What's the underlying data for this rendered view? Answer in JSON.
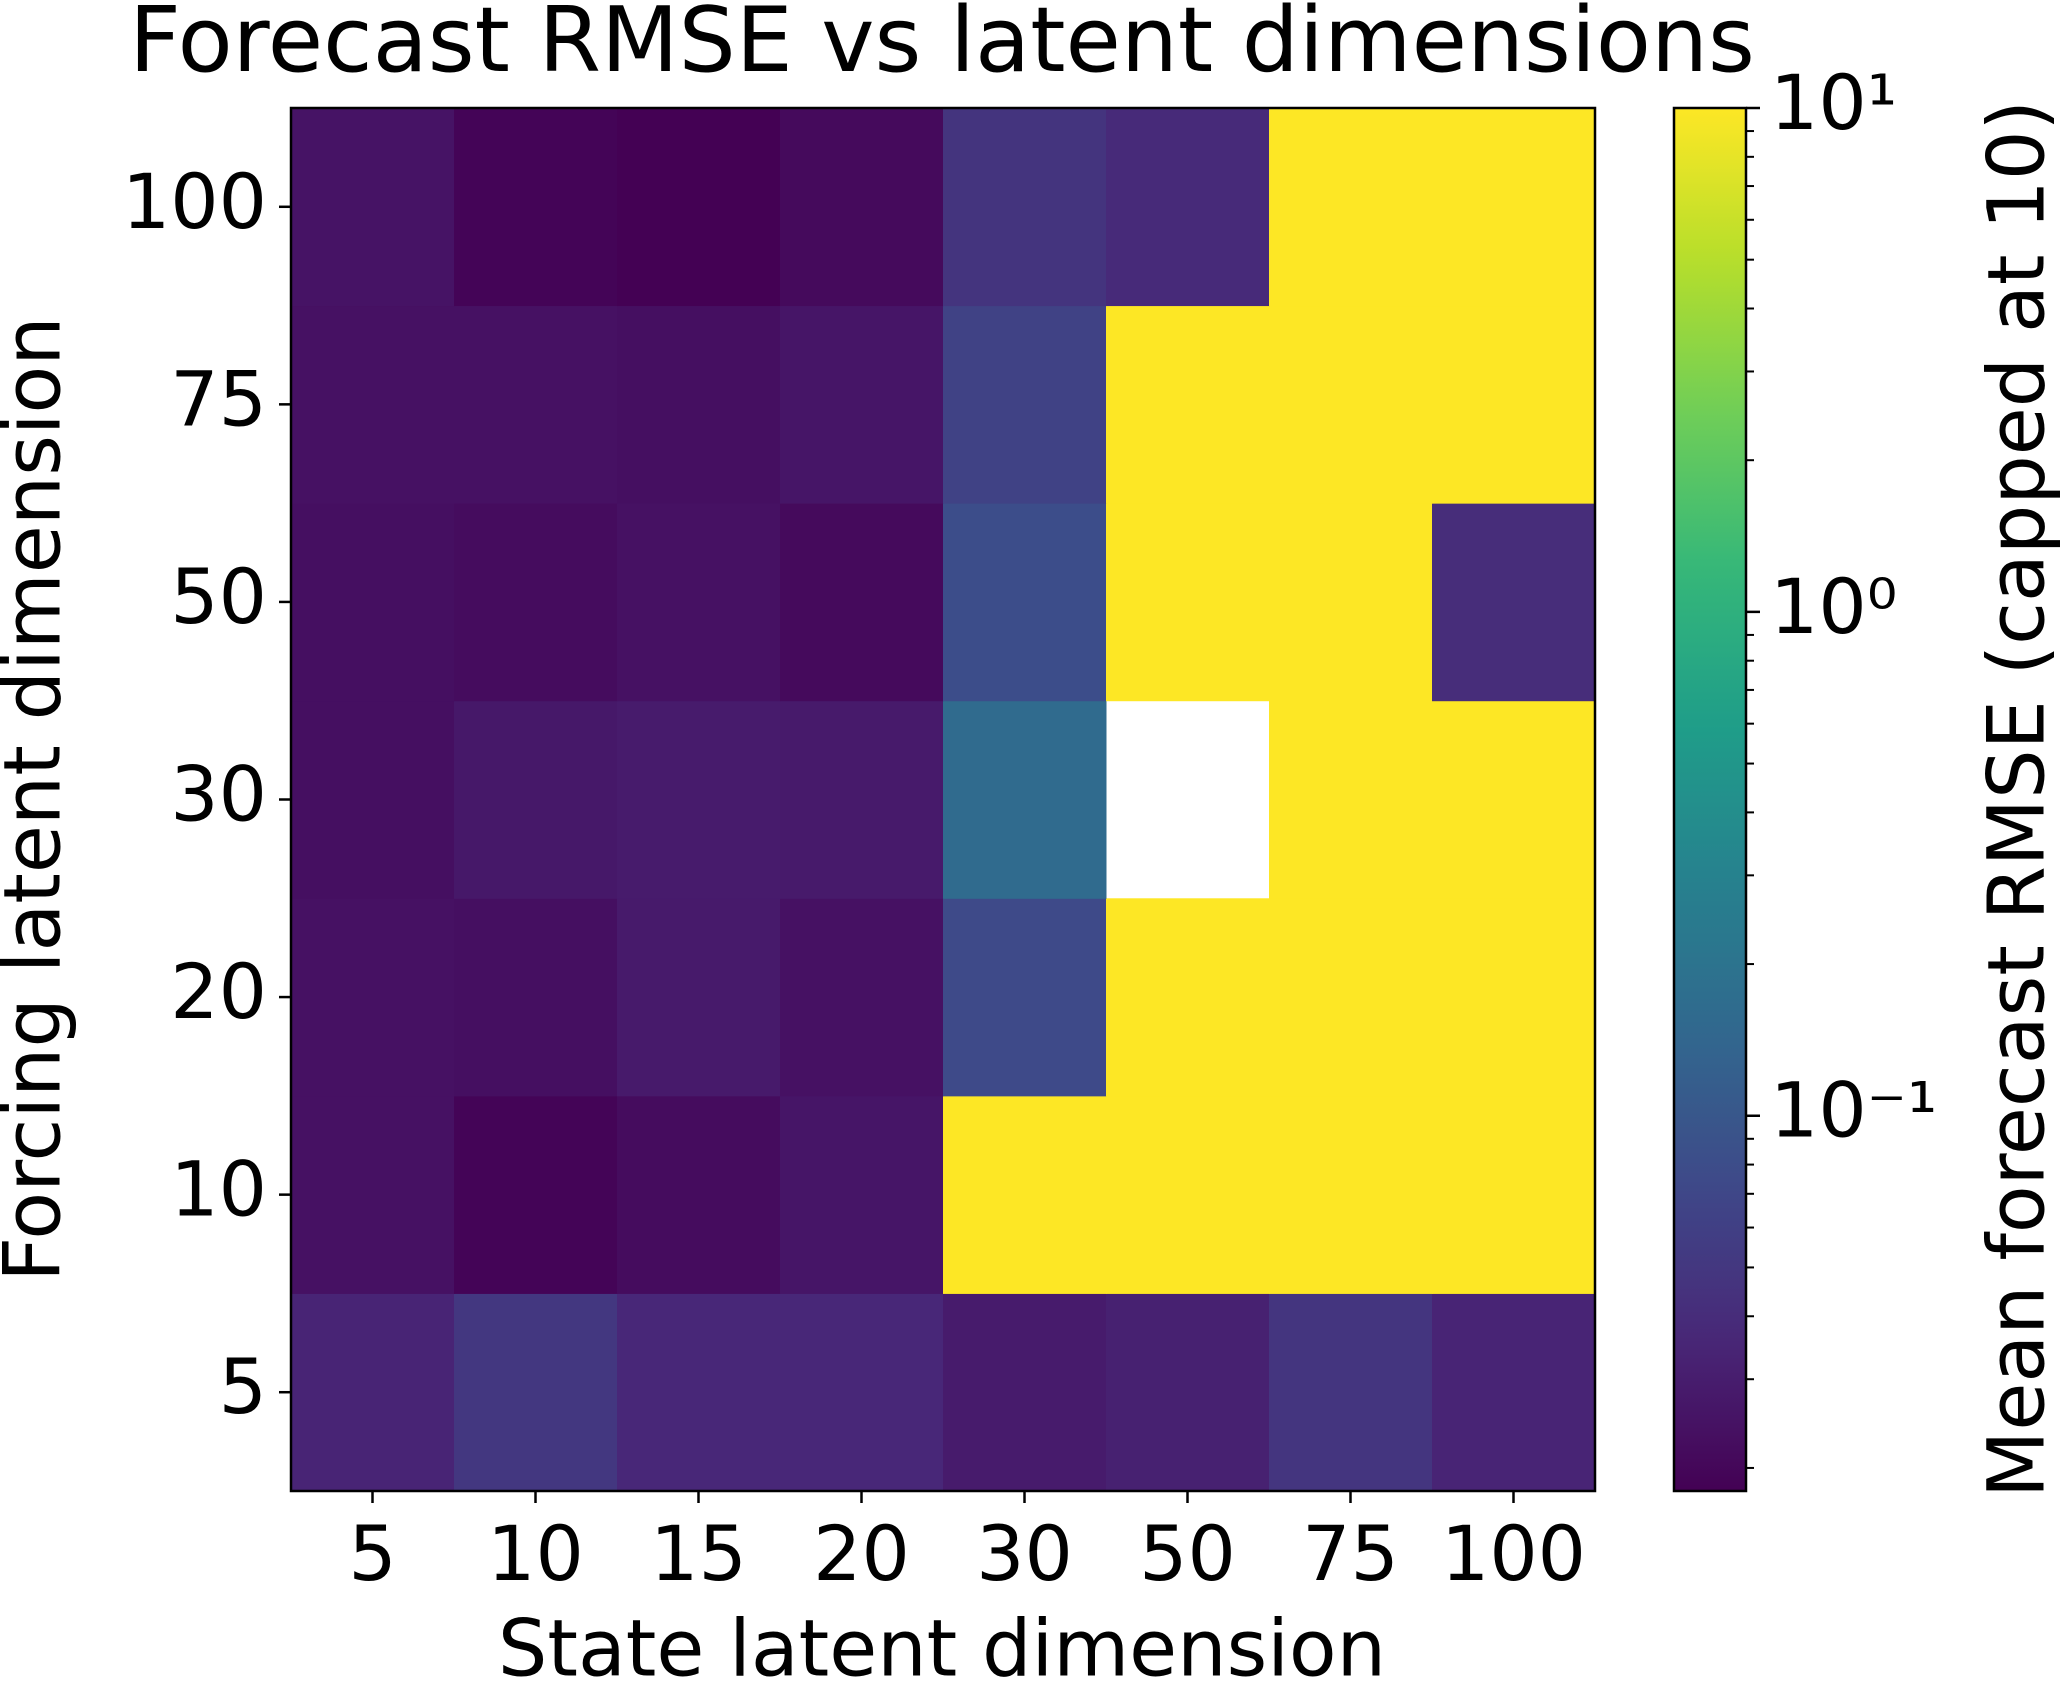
{
  "chart_data": {
    "type": "heatmap",
    "title": "Forecast RMSE vs latent dimensions",
    "x_label": "State latent dimension",
    "y_label": "Forcing latent dimension",
    "x_categories": [
      "5",
      "10",
      "15",
      "20",
      "30",
      "50",
      "75",
      "100"
    ],
    "y_categories": [
      "5",
      "10",
      "20",
      "30",
      "50",
      "75",
      "100"
    ],
    "values": [
      [
        0.034,
        0.05,
        0.036,
        0.036,
        0.029,
        0.032,
        0.048,
        0.034
      ],
      [
        0.024,
        0.019,
        0.022,
        0.026,
        10,
        10,
        10,
        10
      ],
      [
        0.024,
        0.023,
        0.028,
        0.024,
        0.075,
        10,
        10,
        10
      ],
      [
        0.023,
        0.027,
        0.029,
        0.028,
        0.16,
        null,
        10,
        10
      ],
      [
        0.023,
        0.022,
        0.024,
        0.021,
        0.08,
        10,
        10,
        0.04
      ],
      [
        0.024,
        0.024,
        0.023,
        0.026,
        0.063,
        10,
        10,
        10
      ],
      [
        0.025,
        0.019,
        0.018,
        0.021,
        0.047,
        0.038,
        10,
        10
      ]
    ],
    "colormap": "viridis",
    "colorbar_label": "Mean forecast RMSE (capped at 10)",
    "clim": [
      0.018,
      10
    ],
    "cscale": "log",
    "cticks": [
      {
        "value": 0.1,
        "label": "10⁻¹"
      },
      {
        "value": 1,
        "label": "10⁰"
      },
      {
        "value": 10,
        "label": "10¹"
      }
    ],
    "cminor_ticks": [
      0.02,
      0.03,
      0.04,
      0.05,
      0.06,
      0.07,
      0.08,
      0.09,
      0.2,
      0.3,
      0.4,
      0.5,
      0.6,
      0.7,
      0.8,
      0.9,
      2,
      3,
      4,
      5,
      6,
      7,
      8,
      9
    ]
  }
}
